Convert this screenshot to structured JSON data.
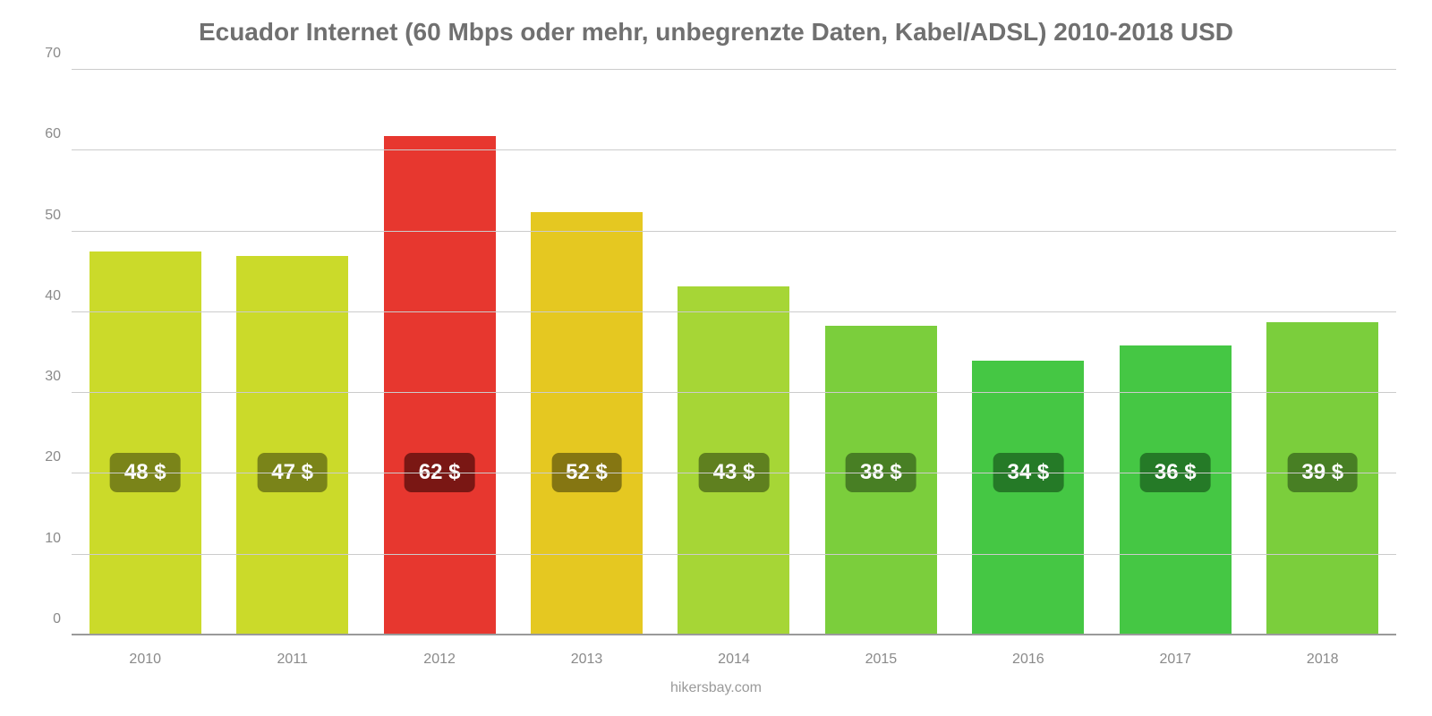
{
  "chart": {
    "type": "bar",
    "title": "Ecuador Internet (60 Mbps oder mehr, unbegrenzte Daten, Kabel/ADSL) 2010-2018 USD",
    "title_fontsize": 28,
    "title_color": "#707070",
    "credit": "hikersbay.com",
    "background_color": "#ffffff",
    "grid_color": "#cccccc",
    "axis_color": "#9a9a9a",
    "axis_label_color": "#8a8a8a",
    "axis_label_fontsize": 16,
    "ylim": [
      0,
      70
    ],
    "ytick_step": 10,
    "yticks": [
      0,
      10,
      20,
      30,
      40,
      50,
      60,
      70
    ],
    "bar_width_ratio": 0.76,
    "value_label_offset_from_bottom": 160,
    "value_label_fontsize": 24,
    "categories": [
      "2010",
      "2011",
      "2012",
      "2013",
      "2014",
      "2015",
      "2016",
      "2017",
      "2018"
    ],
    "values": [
      47.5,
      47.0,
      61.8,
      52.4,
      43.2,
      38.3,
      34.0,
      35.9,
      38.8
    ],
    "display_labels": [
      "48 $",
      "47 $",
      "62 $",
      "52 $",
      "43 $",
      "38 $",
      "34 $",
      "36 $",
      "39 $"
    ],
    "bar_colors": [
      "#cbda2a",
      "#cbda2a",
      "#e7372f",
      "#e5c821",
      "#a6d636",
      "#7bce3c",
      "#45c744",
      "#45c744",
      "#7bce3c"
    ],
    "badge_colors": [
      "#7a8419",
      "#7a8419",
      "#7a1714",
      "#857612",
      "#5f801f",
      "#487f24",
      "#257a27",
      "#257a27",
      "#487f24"
    ]
  }
}
